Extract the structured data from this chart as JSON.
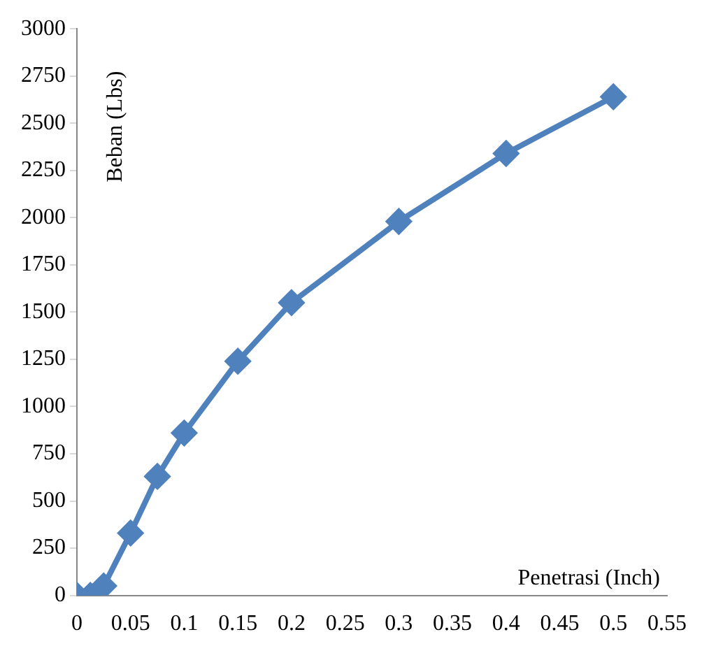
{
  "chart_data": {
    "type": "line",
    "xlabel": "Penetrasi (Inch)",
    "ylabel": "Beban (Lbs)",
    "x": [
      0,
      0.0125,
      0.025,
      0.05,
      0.075,
      0.1,
      0.15,
      0.2,
      0.3,
      0.4,
      0.5
    ],
    "series": [
      {
        "color": "#4f81bd",
        "values": [
          0,
          0,
          50,
          330,
          630,
          860,
          1240,
          1550,
          1980,
          2340,
          2640
        ]
      }
    ],
    "xlim": [
      0,
      0.55
    ],
    "xticks": [
      0,
      0.05,
      0.1,
      0.15,
      0.2,
      0.25,
      0.3,
      0.35,
      0.4,
      0.45,
      0.5,
      0.55
    ],
    "ylim": [
      0,
      3000
    ],
    "yticks": [
      0,
      250,
      500,
      750,
      1000,
      1250,
      1500,
      1750,
      2000,
      2250,
      2500,
      2750,
      3000
    ],
    "grid": false,
    "legend": false,
    "marker": "diamond",
    "line_style": "solid"
  }
}
